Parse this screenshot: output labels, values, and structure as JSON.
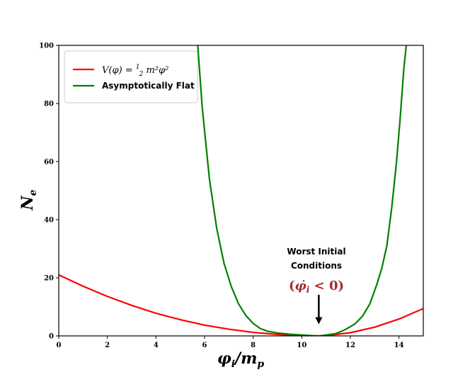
{
  "chart_data": {
    "type": "line",
    "title": "",
    "xlabel": "φi/mp",
    "xlabel_parts": {
      "main": "φ",
      "sub": "i",
      "rest": "/m",
      "sub2": "p"
    },
    "ylabel": "Ne",
    "ylabel_parts": {
      "main": "N",
      "sub": "e"
    },
    "xlim": [
      0,
      15
    ],
    "ylim": [
      0,
      100
    ],
    "xticks": [
      0,
      2,
      4,
      6,
      8,
      10,
      12,
      14
    ],
    "yticks": [
      0,
      20,
      40,
      60,
      80,
      100
    ],
    "grid": false,
    "legend_position": "top-left",
    "series": [
      {
        "name": "V(φ) = ½m²φ²",
        "legend_math": "V(φ) = ",
        "legend_frac_num": "1",
        "legend_frac_den": "2",
        "legend_tail": "m²φ²",
        "color": "#ff0000",
        "x": [
          0,
          1,
          2,
          3,
          4,
          5,
          6,
          7,
          8,
          9,
          10,
          10.7,
          11,
          12,
          13,
          14,
          15
        ],
        "y": [
          21,
          17.1,
          13.6,
          10.5,
          7.8,
          5.6,
          3.7,
          2.3,
          1.2,
          0.5,
          0.1,
          0,
          0.1,
          1.1,
          3,
          5.8,
          9.4
        ]
      },
      {
        "name": "Asymptotically Flat",
        "color": "#008000",
        "x": [
          5.72,
          5.9,
          6.2,
          6.5,
          6.8,
          7.1,
          7.4,
          7.7,
          8.0,
          8.3,
          8.6,
          9.0,
          9.5,
          10.0,
          10.5,
          10.75,
          11.0,
          11.4,
          11.8,
          12.2,
          12.5,
          12.8,
          13.1,
          13.3,
          13.5,
          13.7,
          13.9,
          14.05,
          14.2,
          14.3
        ],
        "y": [
          100,
          79,
          54,
          37,
          25,
          17,
          11,
          7,
          4.3,
          2.5,
          1.6,
          1.0,
          0.6,
          0.3,
          0.05,
          0,
          0.3,
          0.8,
          2.2,
          4.2,
          6.8,
          11,
          18,
          23.5,
          31,
          44,
          60,
          75,
          92,
          100
        ]
      }
    ],
    "annotation": {
      "line1": "Worst Initial",
      "line2": "Conditions",
      "math": "(φ̇i < 0)",
      "math_parts": {
        "open": "(",
        "phi": "φ̇",
        "sub": "i",
        "rest": " < 0)"
      },
      "arrow_x": 10.7,
      "arrow_points_to_y": 4
    }
  }
}
